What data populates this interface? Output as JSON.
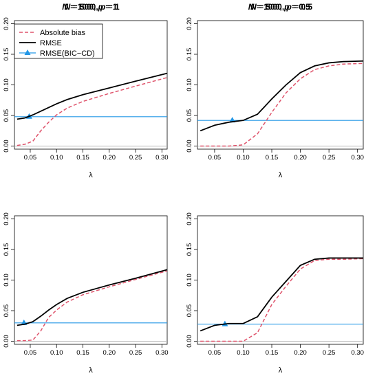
{
  "figure": {
    "background": "#ffffff"
  },
  "legend": {
    "position": "top-left of first panel",
    "items": [
      {
        "label": "Absolute bias",
        "series": "abs_bias"
      },
      {
        "label": "RMSE",
        "series": "rmse"
      },
      {
        "label": "RMSE(BIC−CD)",
        "series": "rmse_bic"
      }
    ]
  },
  "styles": {
    "abs_bias": {
      "color": "#df536b",
      "dash": "dashed"
    },
    "rmse": {
      "color": "#000000",
      "dash": "solid"
    },
    "rmse_bic": {
      "color": "#2297e6",
      "dash": "solid",
      "marker": "triangle"
    },
    "zero_line": {
      "color": "#bebebe"
    }
  },
  "chart_data": [
    {
      "type": "line",
      "title_parts": {
        "a": "N",
        "b": " = 500, ",
        "c": "p",
        "d": " = 1"
      },
      "xlabel": "λ",
      "ylabel": "",
      "xlim": [
        0.02,
        0.31
      ],
      "ylim": [
        -0.005,
        0.205
      ],
      "xticks": [
        "0.05",
        "0.10",
        "0.15",
        "0.20",
        "0.25",
        "0.30"
      ],
      "yticks": [
        "0.00",
        "0.05",
        "0.10",
        "0.15",
        "0.20"
      ],
      "grid": false,
      "series": [
        {
          "key": "rmse",
          "x": [
            0.025,
            0.04,
            0.055,
            0.07,
            0.085,
            0.1,
            0.12,
            0.15,
            0.2,
            0.25,
            0.31
          ],
          "y": [
            0.044,
            0.046,
            0.051,
            0.057,
            0.063,
            0.069,
            0.076,
            0.084,
            0.095,
            0.106,
            0.119
          ]
        },
        {
          "key": "abs_bias",
          "x": [
            0.025,
            0.04,
            0.055,
            0.07,
            0.085,
            0.1,
            0.12,
            0.15,
            0.2,
            0.25,
            0.31
          ],
          "y": [
            0.001,
            0.003,
            0.008,
            0.025,
            0.039,
            0.051,
            0.062,
            0.073,
            0.086,
            0.098,
            0.112
          ]
        },
        {
          "key": "rmse_bic",
          "x": [
            0.02,
            0.31
          ],
          "y": [
            0.048,
            0.048
          ],
          "marker": {
            "x": 0.048,
            "y": 0.048
          }
        },
        {
          "key": "zero_line",
          "x": [
            0.02,
            0.31
          ],
          "y": [
            0.0,
            0.0
          ]
        }
      ]
    },
    {
      "type": "line",
      "title_parts": {
        "a": "N",
        "b": " = 500, ",
        "c": "p",
        "d": " = 0.5"
      },
      "xlabel": "λ",
      "ylabel": "",
      "xlim": [
        0.02,
        0.31
      ],
      "ylim": [
        -0.005,
        0.205
      ],
      "xticks": [
        "0.05",
        "0.10",
        "0.15",
        "0.20",
        "0.25",
        "0.30"
      ],
      "yticks": [
        "0.00",
        "0.05",
        "0.10",
        "0.15",
        "0.20"
      ],
      "grid": false,
      "series": [
        {
          "key": "rmse",
          "x": [
            0.025,
            0.05,
            0.075,
            0.1,
            0.125,
            0.15,
            0.175,
            0.2,
            0.225,
            0.25,
            0.275,
            0.31
          ],
          "y": [
            0.025,
            0.034,
            0.039,
            0.042,
            0.052,
            0.077,
            0.1,
            0.12,
            0.131,
            0.136,
            0.138,
            0.139
          ]
        },
        {
          "key": "abs_bias",
          "x": [
            0.025,
            0.05,
            0.075,
            0.1,
            0.125,
            0.15,
            0.175,
            0.2,
            0.225,
            0.25,
            0.275,
            0.31
          ],
          "y": [
            0.0,
            0.0,
            0.0,
            0.002,
            0.02,
            0.055,
            0.087,
            0.11,
            0.125,
            0.131,
            0.134,
            0.135
          ]
        },
        {
          "key": "rmse_bic",
          "x": [
            0.02,
            0.31
          ],
          "y": [
            0.042,
            0.042
          ],
          "marker": {
            "x": 0.081,
            "y": 0.042
          }
        },
        {
          "key": "zero_line",
          "x": [
            0.02,
            0.31
          ],
          "y": [
            0.0,
            0.0
          ]
        }
      ]
    },
    {
      "type": "line",
      "title_parts": {
        "a": "N",
        "b": " = 1000, ",
        "c": "p",
        "d": " = 1"
      },
      "xlabel": "λ",
      "ylabel": "",
      "xlim": [
        0.02,
        0.31
      ],
      "ylim": [
        -0.005,
        0.205
      ],
      "xticks": [
        "0.05",
        "0.10",
        "0.15",
        "0.20",
        "0.25",
        "0.30"
      ],
      "yticks": [
        "0.00",
        "0.05",
        "0.10",
        "0.15",
        "0.20"
      ],
      "grid": false,
      "series": [
        {
          "key": "rmse",
          "x": [
            0.025,
            0.04,
            0.055,
            0.07,
            0.085,
            0.1,
            0.12,
            0.15,
            0.2,
            0.25,
            0.31
          ],
          "y": [
            0.026,
            0.028,
            0.032,
            0.041,
            0.051,
            0.06,
            0.07,
            0.08,
            0.092,
            0.103,
            0.117
          ]
        },
        {
          "key": "abs_bias",
          "x": [
            0.025,
            0.04,
            0.055,
            0.07,
            0.085,
            0.1,
            0.12,
            0.15,
            0.2,
            0.25,
            0.31
          ],
          "y": [
            0.001,
            0.001,
            0.002,
            0.017,
            0.039,
            0.051,
            0.064,
            0.076,
            0.089,
            0.101,
            0.115
          ]
        },
        {
          "key": "rmse_bic",
          "x": [
            0.02,
            0.31
          ],
          "y": [
            0.03,
            0.03
          ],
          "marker": {
            "x": 0.038,
            "y": 0.03
          }
        },
        {
          "key": "zero_line",
          "x": [
            0.02,
            0.31
          ],
          "y": [
            0.0,
            0.0
          ]
        }
      ]
    },
    {
      "type": "line",
      "title_parts": {
        "a": "N",
        "b": " = 1000, ",
        "c": "p",
        "d": " = 0.5"
      },
      "xlabel": "λ",
      "ylabel": "",
      "xlim": [
        0.02,
        0.31
      ],
      "ylim": [
        -0.005,
        0.205
      ],
      "xticks": [
        "0.05",
        "0.10",
        "0.15",
        "0.20",
        "0.25",
        "0.30"
      ],
      "yticks": [
        "0.00",
        "0.05",
        "0.10",
        "0.15",
        "0.20"
      ],
      "grid": false,
      "series": [
        {
          "key": "rmse",
          "x": [
            0.025,
            0.05,
            0.075,
            0.1,
            0.125,
            0.15,
            0.175,
            0.2,
            0.225,
            0.25,
            0.275,
            0.31
          ],
          "y": [
            0.017,
            0.026,
            0.029,
            0.029,
            0.04,
            0.072,
            0.098,
            0.124,
            0.134,
            0.136,
            0.136,
            0.136
          ]
        },
        {
          "key": "abs_bias",
          "x": [
            0.025,
            0.05,
            0.075,
            0.1,
            0.125,
            0.15,
            0.175,
            0.2,
            0.225,
            0.25,
            0.275,
            0.31
          ],
          "y": [
            0.0,
            0.0,
            0.0,
            0.0,
            0.014,
            0.06,
            0.09,
            0.118,
            0.132,
            0.134,
            0.134,
            0.135
          ]
        },
        {
          "key": "rmse_bic",
          "x": [
            0.02,
            0.31
          ],
          "y": [
            0.028,
            0.028
          ],
          "marker": {
            "x": 0.068,
            "y": 0.028
          }
        },
        {
          "key": "zero_line",
          "x": [
            0.02,
            0.31
          ],
          "y": [
            0.0,
            0.0
          ]
        }
      ]
    }
  ]
}
